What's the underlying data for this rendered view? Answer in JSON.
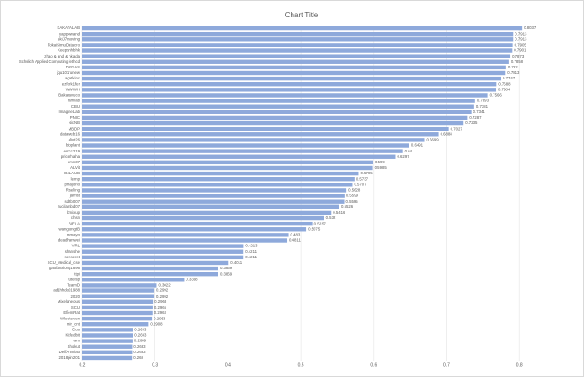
{
  "chart_data": {
    "type": "bar",
    "orientation": "horizontal",
    "title": "Chart Title",
    "categories": [
      "KAKATALAB",
      "yappowand",
      "skiJ7moving",
      "TokaiSimuDatacro",
      "Keepshhbhk",
      "zhao & and & nkada",
      "Schulich Applied Computing lethcd",
      "DRGAS",
      "jqu101runew",
      "agatkinc",
      "ezfork1fer",
      "WWWH",
      "Bakaravuco",
      "tamlab",
      "CBU",
      "ImagineLab",
      "PNIC",
      "NicNB",
      "MBDP",
      "dataweb16",
      "alivt26",
      "bioplant",
      "emcc219",
      "pricerhaha",
      "emn37",
      "ALVit",
      "DoLAUB",
      "lemp",
      "pmajorlo",
      "Riseling",
      "jamst",
      "sd2b007",
      "rucilambd07",
      "bmixup",
      "chsn",
      "BIELA",
      "wanglongtB",
      "mmayo",
      "deadhanwei",
      "VRL",
      "shanshe",
      "senseret",
      "SCU_Medical_cse",
      "gaofanxiong1896",
      "ttpi",
      "tutelsp",
      "TeamD",
      "ad1hhdo01988",
      "2020",
      "Mixelaneous",
      "SCU",
      "EfiemRat",
      "Wleckeven",
      "mir_cnt",
      "Guo",
      "Kitfedbit",
      "wm",
      "Shokut",
      "DeffAnmiao",
      "2018pin201"
    ],
    "values": [
      0.8037,
      0.7913,
      0.7913,
      0.7905,
      0.7901,
      0.7873,
      0.7858,
      0.782,
      0.7813,
      0.7747,
      0.7688,
      0.7684,
      0.7566,
      0.7393,
      0.7381,
      0.7341,
      0.7287,
      0.7235,
      0.7027,
      0.6888,
      0.6699,
      0.6491,
      0.64,
      0.6297,
      0.599,
      0.5985,
      0.5795,
      0.5737,
      0.5707,
      0.5628,
      0.5599,
      0.5595,
      0.5526,
      0.5416,
      0.532,
      0.5157,
      0.5075,
      0.483,
      0.4811,
      0.4213,
      0.4211,
      0.4211,
      0.4011,
      0.3869,
      0.3869,
      0.3398,
      0.3022,
      0.2992,
      0.2992,
      0.2968,
      0.2965,
      0.2963,
      0.2955,
      0.2908,
      0.2693,
      0.2693,
      0.2689,
      0.2683,
      0.2683,
      0.268
    ],
    "color": "#8ea9db",
    "xlim": [
      0.2,
      0.865
    ],
    "xticks": [
      0.2,
      0.3,
      0.4,
      0.5,
      0.6,
      0.7,
      0.8
    ],
    "grid": true
  }
}
